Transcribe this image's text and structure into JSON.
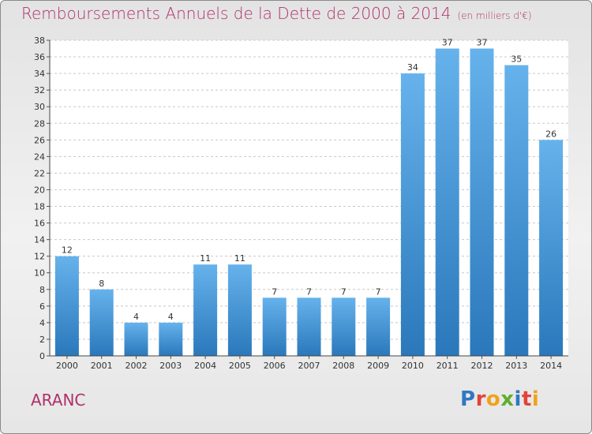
{
  "title": "Remboursements Annuels de la Dette de 2000 à 2014",
  "unit": "(en milliers d'€)",
  "commune": "ARANC",
  "logo": {
    "text": "Proxiti",
    "letters": [
      {
        "ch": "P",
        "color": "#2f79c2"
      },
      {
        "ch": "r",
        "color": "#e0443a"
      },
      {
        "ch": "o",
        "color": "#f0a21c"
      },
      {
        "ch": "x",
        "color": "#5fae2e"
      },
      {
        "ch": "i",
        "color": "#2f79c2"
      },
      {
        "ch": "t",
        "color": "#e0443a"
      },
      {
        "ch": "i",
        "color": "#f0a21c"
      }
    ]
  },
  "colors": {
    "bar_light": "#66b2ec",
    "bar_dark": "#2a78bb",
    "accent": "#b0306a"
  },
  "chart_data": {
    "type": "bar",
    "title": "Remboursements Annuels de la Dette de 2000 à 2014",
    "ylabel": "",
    "xlabel": "",
    "categories": [
      "2000",
      "2001",
      "2002",
      "2003",
      "2004",
      "2005",
      "2006",
      "2007",
      "2008",
      "2009",
      "2010",
      "2011",
      "2012",
      "2013",
      "2014"
    ],
    "values": [
      12,
      8,
      4,
      4,
      11,
      11,
      7,
      7,
      7,
      7,
      34,
      37,
      37,
      35,
      26
    ],
    "ylim": [
      0,
      38
    ],
    "yticks": [
      0,
      2,
      4,
      6,
      8,
      10,
      12,
      14,
      16,
      18,
      20,
      22,
      24,
      26,
      28,
      30,
      32,
      34,
      36,
      38
    ],
    "grid": true
  }
}
